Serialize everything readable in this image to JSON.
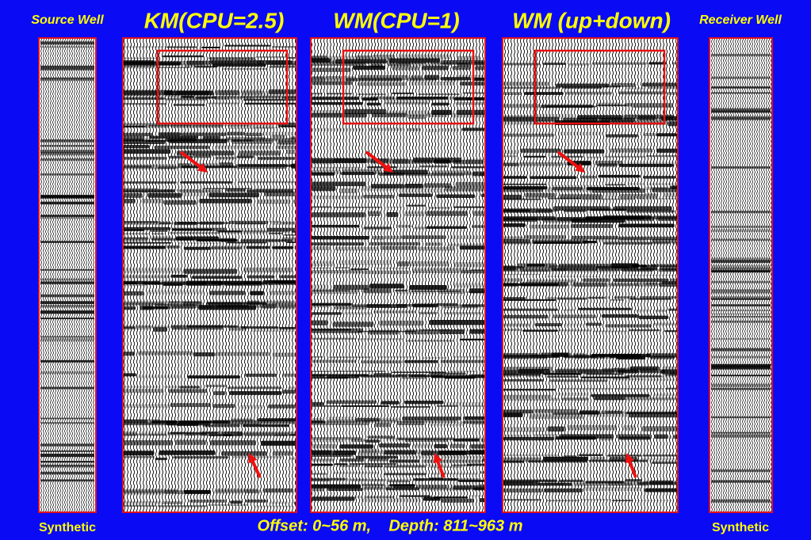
{
  "header": {
    "source_well": "Source Well",
    "titles": [
      "KM(CPU=2.5)",
      "WM(CPU=1)",
      "WM (up+down)"
    ],
    "receiver_well": "Receiver Well"
  },
  "footer": {
    "left": "Synthetic",
    "caption": "Offset: 0~56 m,    Depth: 811~963 m",
    "right": "Synthetic"
  }
}
